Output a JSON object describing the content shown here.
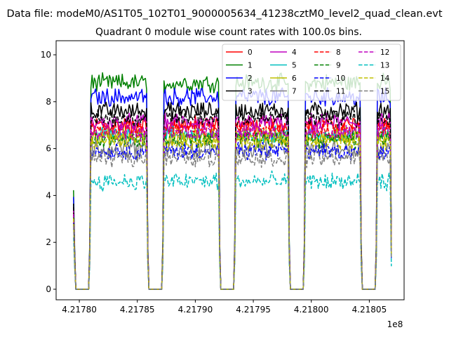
{
  "chart_data": {
    "type": "line",
    "suptitle": "Data file: modeM0/AS1T05_102T01_9000005634_41238cztM0_level2_quad_clean.evt",
    "title": "Quadrant 0 module wise count rates with 100.0s bins.",
    "xlabel": "",
    "ylabel": "",
    "x_offset_label": "1e8",
    "xlim": [
      4.21778,
      4.21808
    ],
    "ylim": [
      -0.45,
      10.6
    ],
    "x_ticks": [
      4.2178,
      4.21785,
      4.2179,
      4.21795,
      4.218,
      4.21805
    ],
    "x_tick_labels": [
      "4.21780",
      "4.21785",
      "4.21790",
      "4.21795",
      "4.21800",
      "4.21805"
    ],
    "y_ticks": [
      0,
      2,
      4,
      6,
      8,
      10
    ],
    "y_tick_labels": [
      "0",
      "2",
      "4",
      "6",
      "8",
      "10"
    ],
    "x_start": 4.217795,
    "x_end": 4.218069,
    "x_step": 1e-06,
    "on_segments": [
      [
        4.21781,
        4.217858
      ],
      [
        4.217873,
        4.21792
      ],
      [
        4.217935,
        4.21798
      ],
      [
        4.217995,
        4.218042
      ],
      [
        4.218057,
        4.218068
      ]
    ],
    "start_value_scale": 0.48,
    "legend_placement": "top-right",
    "series": [
      {
        "name": "0",
        "level": 7.0,
        "color": "#ff0000",
        "dash": "solid"
      },
      {
        "name": "1",
        "level": 8.8,
        "color": "#008000",
        "dash": "solid"
      },
      {
        "name": "2",
        "level": 8.2,
        "color": "#0000ff",
        "dash": "solid"
      },
      {
        "name": "3",
        "level": 7.6,
        "color": "#000000",
        "dash": "solid"
      },
      {
        "name": "4",
        "level": 7.1,
        "color": "#bf00bf",
        "dash": "solid"
      },
      {
        "name": "5",
        "level": 6.6,
        "color": "#00bfbf",
        "dash": "solid"
      },
      {
        "name": "6",
        "level": 6.5,
        "color": "#bfbf00",
        "dash": "solid"
      },
      {
        "name": "7",
        "level": 6.0,
        "color": "#808080",
        "dash": "solid"
      },
      {
        "name": "8",
        "level": 6.8,
        "color": "#ff0000",
        "dash": "dashed"
      },
      {
        "name": "9",
        "level": 6.4,
        "color": "#008000",
        "dash": "dashed"
      },
      {
        "name": "10",
        "level": 5.9,
        "color": "#0000ff",
        "dash": "dashed"
      },
      {
        "name": "11",
        "level": 7.3,
        "color": "#000000",
        "dash": "dashed"
      },
      {
        "name": "12",
        "level": 6.7,
        "color": "#bf00bf",
        "dash": "dashed"
      },
      {
        "name": "13",
        "level": 4.6,
        "color": "#00bfbf",
        "dash": "dashed"
      },
      {
        "name": "14",
        "level": 6.3,
        "color": "#bfbf00",
        "dash": "dashed"
      },
      {
        "name": "15",
        "level": 5.6,
        "color": "#808080",
        "dash": "dashed"
      }
    ]
  }
}
